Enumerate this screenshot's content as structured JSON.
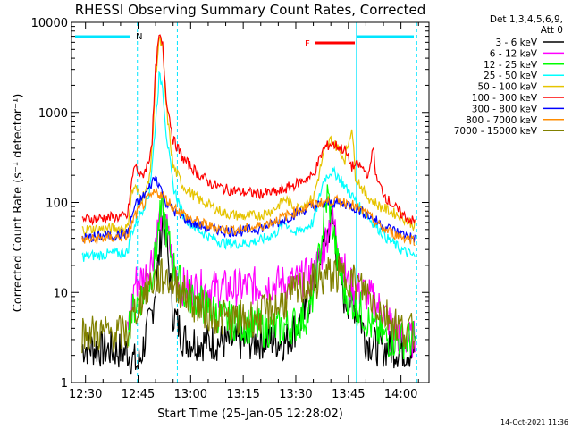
{
  "chart_data": {
    "type": "line",
    "title": "RHESSI Observing Summary Count Rates, Corrected",
    "ylabel": "Corrected Count Rate (s⁻¹ detector⁻¹)",
    "xlabel": "Start Time (25-Jan-05 12:28:02)",
    "yscale": "log",
    "ylim": [
      1,
      10000
    ],
    "xlim": [
      "12:26",
      "14:08"
    ],
    "y_tick_labels": [
      "1",
      "10",
      "100",
      "1000",
      "10000"
    ],
    "x_tick_labels": [
      "12:30",
      "12:45",
      "13:00",
      "13:15",
      "13:30",
      "13:45",
      "14:00"
    ],
    "legend_header": [
      "Det 1,3,4,5,6,9,",
      "Att 0"
    ],
    "legend_position": "right",
    "annotations": {
      "night_marker": "N",
      "flare_marker": "F"
    },
    "timestamp": "14-Oct-2021 11:36",
    "series": [
      {
        "name": "3 - 6 keV",
        "color": "#000000",
        "points": [
          [
            "12:29",
            2.5
          ],
          [
            "12:42",
            2.2
          ],
          [
            "12:45",
            1.5
          ],
          [
            "12:47",
            3
          ],
          [
            "12:49",
            6
          ],
          [
            "12:51",
            25
          ],
          [
            "12:52",
            65
          ],
          [
            "12:53",
            40
          ],
          [
            "12:55",
            6
          ],
          [
            "12:58",
            3
          ],
          [
            "13:05",
            2.8
          ],
          [
            "13:15",
            2.8
          ],
          [
            "13:22",
            3
          ],
          [
            "13:27",
            2.8
          ],
          [
            "13:33",
            6
          ],
          [
            "13:37",
            25
          ],
          [
            "13:40",
            60
          ],
          [
            "13:41",
            55
          ],
          [
            "13:42",
            20
          ],
          [
            "13:44",
            8
          ],
          [
            "13:46",
            8
          ],
          [
            "13:48",
            6
          ],
          [
            "13:50",
            3
          ],
          [
            "13:53",
            2.5
          ],
          [
            "14:00",
            2.3
          ],
          [
            "14:04",
            2.2
          ]
        ]
      },
      {
        "name": "6 - 12 keV",
        "color": "#ff00ff",
        "points": [
          [
            "12:42",
            4
          ],
          [
            "12:43",
            6
          ],
          [
            "12:44",
            13
          ],
          [
            "12:47",
            15
          ],
          [
            "12:49",
            25
          ],
          [
            "12:51",
            60
          ],
          [
            "12:52",
            90
          ],
          [
            "12:53",
            55
          ],
          [
            "12:55",
            20
          ],
          [
            "12:57",
            12
          ],
          [
            "13:00",
            11
          ],
          [
            "13:10",
            11
          ],
          [
            "13:20",
            12
          ],
          [
            "13:30",
            13
          ],
          [
            "13:35",
            16
          ],
          [
            "13:38",
            30
          ],
          [
            "13:40",
            70
          ],
          [
            "13:41",
            55
          ],
          [
            "13:43",
            25
          ],
          [
            "13:45",
            12
          ],
          [
            "13:50",
            10
          ],
          [
            "13:55",
            6
          ],
          [
            "14:00",
            3
          ],
          [
            "14:04",
            3
          ]
        ]
      },
      {
        "name": "12 - 25 keV",
        "color": "#00ff00",
        "points": [
          [
            "12:42",
            4
          ],
          [
            "12:44",
            7
          ],
          [
            "12:46",
            9
          ],
          [
            "12:48",
            12
          ],
          [
            "12:50",
            25
          ],
          [
            "12:51",
            60
          ],
          [
            "12:52",
            80
          ],
          [
            "12:53",
            50
          ],
          [
            "12:55",
            20
          ],
          [
            "12:58",
            10
          ],
          [
            "13:02",
            8
          ],
          [
            "13:10",
            5
          ],
          [
            "13:20",
            4
          ],
          [
            "13:25",
            4
          ],
          [
            "13:30",
            4.5
          ],
          [
            "13:34",
            6
          ],
          [
            "13:37",
            30
          ],
          [
            "13:39",
            120
          ],
          [
            "13:40",
            80
          ],
          [
            "13:42",
            20
          ],
          [
            "13:44",
            10
          ],
          [
            "13:46",
            8
          ],
          [
            "13:49",
            6
          ],
          [
            "13:52",
            4
          ],
          [
            "13:56",
            3
          ],
          [
            "14:00",
            3
          ],
          [
            "14:04",
            3
          ]
        ]
      },
      {
        "name": "25 - 50 keV",
        "color": "#00ffff",
        "points": [
          [
            "12:29",
            25
          ],
          [
            "12:42",
            28
          ],
          [
            "12:43",
            45
          ],
          [
            "12:46",
            80
          ],
          [
            "12:48",
            120
          ],
          [
            "12:49",
            250
          ],
          [
            "12:50",
            800
          ],
          [
            "12:51",
            2500
          ],
          [
            "12:52",
            2000
          ],
          [
            "12:53",
            600
          ],
          [
            "12:55",
            150
          ],
          [
            "12:58",
            70
          ],
          [
            "13:02",
            50
          ],
          [
            "13:06",
            40
          ],
          [
            "13:10",
            35
          ],
          [
            "13:15",
            35
          ],
          [
            "13:20",
            38
          ],
          [
            "13:24",
            45
          ],
          [
            "13:27",
            60
          ],
          [
            "13:30",
            45
          ],
          [
            "13:35",
            60
          ],
          [
            "13:38",
            180
          ],
          [
            "13:40",
            220
          ],
          [
            "13:42",
            200
          ],
          [
            "13:44",
            150
          ],
          [
            "13:46",
            120
          ],
          [
            "13:48",
            90
          ],
          [
            "13:52",
            60
          ],
          [
            "13:56",
            40
          ],
          [
            "14:00",
            30
          ],
          [
            "14:04",
            25
          ]
        ]
      },
      {
        "name": "50 - 100 keV",
        "color": "#e6c400",
        "points": [
          [
            "12:29",
            50
          ],
          [
            "12:42",
            52
          ],
          [
            "12:43",
            120
          ],
          [
            "12:44",
            150
          ],
          [
            "12:46",
            110
          ],
          [
            "12:48",
            160
          ],
          [
            "12:49",
            400
          ],
          [
            "12:50",
            2500
          ],
          [
            "12:51",
            6500
          ],
          [
            "12:52",
            5000
          ],
          [
            "12:53",
            1200
          ],
          [
            "12:55",
            250
          ],
          [
            "12:58",
            150
          ],
          [
            "13:02",
            110
          ],
          [
            "13:06",
            90
          ],
          [
            "13:10",
            75
          ],
          [
            "13:15",
            70
          ],
          [
            "13:20",
            72
          ],
          [
            "13:24",
            85
          ],
          [
            "13:27",
            110
          ],
          [
            "13:30",
            85
          ],
          [
            "13:35",
            110
          ],
          [
            "13:38",
            350
          ],
          [
            "13:40",
            500
          ],
          [
            "13:42",
            400
          ],
          [
            "13:44",
            300
          ],
          [
            "13:46",
            700
          ],
          [
            "13:47",
            200
          ],
          [
            "13:50",
            120
          ],
          [
            "13:54",
            90
          ],
          [
            "14:00",
            70
          ],
          [
            "14:04",
            55
          ]
        ]
      },
      {
        "name": "100 - 300 keV",
        "color": "#ff0000",
        "points": [
          [
            "12:29",
            65
          ],
          [
            "12:42",
            70
          ],
          [
            "12:43",
            150
          ],
          [
            "12:44",
            260
          ],
          [
            "12:46",
            190
          ],
          [
            "12:48",
            280
          ],
          [
            "12:49",
            500
          ],
          [
            "12:50",
            3000
          ],
          [
            "12:51",
            7000
          ],
          [
            "12:52",
            5500
          ],
          [
            "12:53",
            1500
          ],
          [
            "12:55",
            500
          ],
          [
            "12:58",
            300
          ],
          [
            "13:02",
            210
          ],
          [
            "13:06",
            160
          ],
          [
            "13:10",
            140
          ],
          [
            "13:15",
            130
          ],
          [
            "13:20",
            125
          ],
          [
            "13:25",
            130
          ],
          [
            "13:30",
            160
          ],
          [
            "13:35",
            200
          ],
          [
            "13:38",
            400
          ],
          [
            "13:40",
            450
          ],
          [
            "13:42",
            420
          ],
          [
            "13:44",
            380
          ],
          [
            "13:46",
            250
          ],
          [
            "13:48",
            260
          ],
          [
            "13:51",
            200
          ],
          [
            "13:52",
            450
          ],
          [
            "13:53",
            180
          ],
          [
            "13:56",
            110
          ],
          [
            "14:00",
            75
          ],
          [
            "14:04",
            60
          ]
        ]
      },
      {
        "name": "300 - 800 keV",
        "color": "#0000ff",
        "points": [
          [
            "12:29",
            40
          ],
          [
            "12:42",
            45
          ],
          [
            "12:44",
            90
          ],
          [
            "12:46",
            110
          ],
          [
            "12:48",
            140
          ],
          [
            "12:49",
            170
          ],
          [
            "12:50",
            190
          ],
          [
            "12:51",
            160
          ],
          [
            "12:53",
            100
          ],
          [
            "12:56",
            75
          ],
          [
            "13:00",
            60
          ],
          [
            "13:05",
            52
          ],
          [
            "13:10",
            48
          ],
          [
            "13:15",
            48
          ],
          [
            "13:20",
            52
          ],
          [
            "13:25",
            60
          ],
          [
            "13:30",
            75
          ],
          [
            "13:35",
            90
          ],
          [
            "13:40",
            100
          ],
          [
            "13:45",
            95
          ],
          [
            "13:50",
            75
          ],
          [
            "13:55",
            55
          ],
          [
            "14:00",
            45
          ],
          [
            "14:04",
            40
          ]
        ]
      },
      {
        "name": "800 - 7000 keV",
        "color": "#ff8c00",
        "points": [
          [
            "12:29",
            38
          ],
          [
            "12:42",
            42
          ],
          [
            "12:44",
            70
          ],
          [
            "12:46",
            90
          ],
          [
            "12:48",
            110
          ],
          [
            "12:50",
            130
          ],
          [
            "12:52",
            120
          ],
          [
            "12:55",
            90
          ],
          [
            "13:00",
            65
          ],
          [
            "13:05",
            55
          ],
          [
            "13:10",
            50
          ],
          [
            "13:15",
            50
          ],
          [
            "13:20",
            55
          ],
          [
            "13:25",
            65
          ],
          [
            "13:30",
            80
          ],
          [
            "13:35",
            95
          ],
          [
            "13:40",
            105
          ],
          [
            "13:45",
            100
          ],
          [
            "13:50",
            75
          ],
          [
            "13:55",
            50
          ],
          [
            "14:00",
            42
          ],
          [
            "14:04",
            38
          ]
        ]
      },
      {
        "name": "7000 - 15000 keV",
        "color": "#808000",
        "points": [
          [
            "12:29",
            3.5
          ],
          [
            "12:42",
            3.5
          ],
          [
            "12:44",
            6
          ],
          [
            "12:46",
            9
          ],
          [
            "12:48",
            12
          ],
          [
            "12:50",
            14
          ],
          [
            "12:53",
            15
          ],
          [
            "12:56",
            12
          ],
          [
            "13:00",
            8
          ],
          [
            "13:05",
            6
          ],
          [
            "13:10",
            5
          ],
          [
            "13:15",
            5
          ],
          [
            "13:20",
            5.5
          ],
          [
            "13:25",
            7
          ],
          [
            "13:30",
            10
          ],
          [
            "13:35",
            13
          ],
          [
            "13:40",
            16
          ],
          [
            "13:45",
            15
          ],
          [
            "13:50",
            10
          ],
          [
            "13:55",
            6
          ],
          [
            "14:00",
            4
          ],
          [
            "14:04",
            3.5
          ]
        ]
      }
    ]
  }
}
